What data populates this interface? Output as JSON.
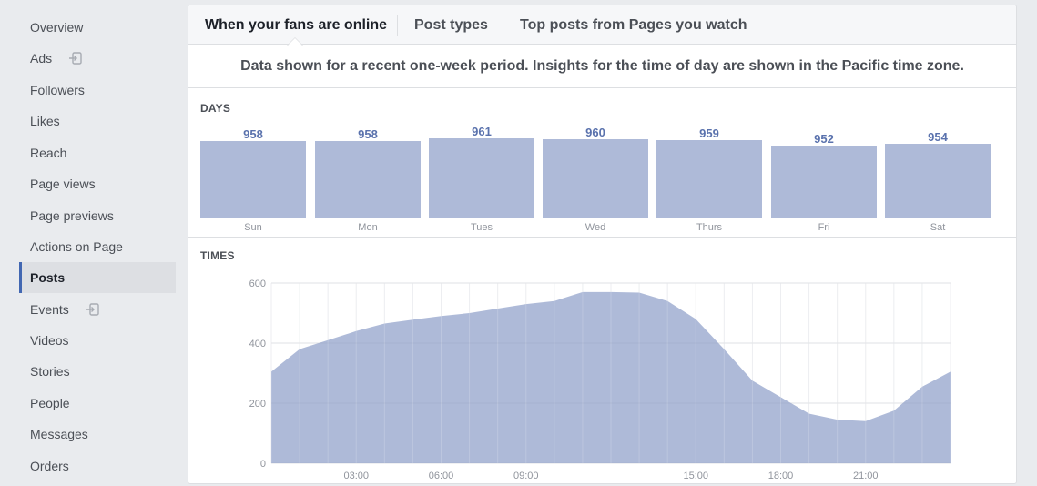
{
  "sidebar": {
    "items": [
      {
        "label": "Overview",
        "icon": ""
      },
      {
        "label": "Ads",
        "icon": "export-icon"
      },
      {
        "label": "Followers",
        "icon": ""
      },
      {
        "label": "Likes",
        "icon": ""
      },
      {
        "label": "Reach",
        "icon": ""
      },
      {
        "label": "Page views",
        "icon": ""
      },
      {
        "label": "Page previews",
        "icon": ""
      },
      {
        "label": "Actions on Page",
        "icon": ""
      },
      {
        "label": "Posts",
        "icon": "",
        "active": true
      },
      {
        "label": "Events",
        "icon": "export-icon"
      },
      {
        "label": "Videos",
        "icon": ""
      },
      {
        "label": "Stories",
        "icon": ""
      },
      {
        "label": "People",
        "icon": ""
      },
      {
        "label": "Messages",
        "icon": ""
      },
      {
        "label": "Orders",
        "icon": ""
      }
    ]
  },
  "tabs": [
    {
      "label": "When your fans are online",
      "active": true
    },
    {
      "label": "Post types",
      "active": false
    },
    {
      "label": "Top posts from Pages you watch",
      "active": false
    }
  ],
  "info_text": "Data shown for a recent one-week period. Insights for the time of day are shown in the Pacific time zone.",
  "days_label": "DAYS",
  "times_label": "TIMES",
  "colors": {
    "accent": "#4267b2",
    "bar_fill": "#aebad8",
    "value_text": "#5a72ad"
  },
  "chart_data": [
    {
      "type": "bar",
      "title": "DAYS",
      "categories": [
        "Sun",
        "Mon",
        "Tues",
        "Wed",
        "Thurs",
        "Fri",
        "Sat"
      ],
      "values": [
        958,
        958,
        961,
        960,
        959,
        952,
        954
      ],
      "data_labels": [
        "958",
        "958",
        "961",
        "960",
        "959",
        "952",
        "954"
      ]
    },
    {
      "type": "area",
      "title": "TIMES",
      "x": [
        0,
        1,
        2,
        3,
        4,
        5,
        6,
        7,
        8,
        9,
        10,
        11,
        12,
        13,
        14,
        15,
        16,
        17,
        18,
        19,
        20,
        21,
        22,
        23,
        24
      ],
      "values": [
        305,
        380,
        410,
        440,
        465,
        478,
        490,
        500,
        515,
        530,
        540,
        570,
        570,
        568,
        540,
        480,
        380,
        275,
        220,
        165,
        145,
        140,
        175,
        255,
        305
      ],
      "ylim": [
        0,
        600
      ],
      "yticks": [
        0,
        200,
        400,
        600
      ],
      "xtick_positions": [
        3,
        6,
        9,
        15,
        18,
        21
      ],
      "xtick_labels": [
        "03:00",
        "06:00",
        "09:00",
        "15:00",
        "18:00",
        "21:00"
      ],
      "grid": true
    }
  ]
}
